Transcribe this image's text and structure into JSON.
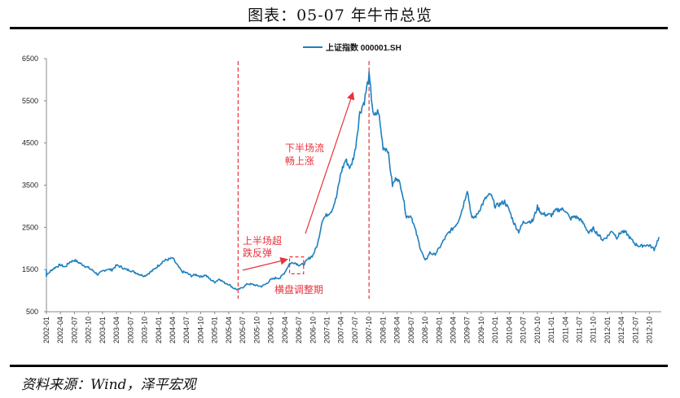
{
  "figure_title": "图表：05-07 年牛市总览",
  "source": "资料来源：Wind，泽平宏观",
  "chart_data": {
    "type": "line",
    "legend": "上证指数 000001.SH",
    "legend_position": "top-center",
    "line_color": "#1f7fbf",
    "annotation_color": "#e8323c",
    "ylim": [
      500,
      6500
    ],
    "yticks": [
      500,
      1500,
      2500,
      3500,
      4500,
      5500,
      6500
    ],
    "x_categories": [
      "2002-01",
      "2002-04",
      "2002-07",
      "2002-10",
      "2003-01",
      "2003-04",
      "2003-07",
      "2003-10",
      "2004-01",
      "2004-04",
      "2004-07",
      "2004-10",
      "2005-01",
      "2005-04",
      "2005-07",
      "2005-10",
      "2006-01",
      "2006-04",
      "2006-07",
      "2006-10",
      "2007-01",
      "2007-04",
      "2007-07",
      "2007-10",
      "2008-01",
      "2008-04",
      "2008-07",
      "2008-10",
      "2009-01",
      "2009-04",
      "2009-07",
      "2009-10",
      "2010-01",
      "2010-04",
      "2010-07",
      "2010-10",
      "2011-01",
      "2011-04",
      "2011-07",
      "2011-10",
      "2012-01",
      "2012-04",
      "2012-07",
      "2012-10"
    ],
    "series": [
      {
        "name": "上证指数 000001.SH",
        "points": [
          [
            "2002-01",
            1500
          ],
          [
            "2002-01",
            1360
          ],
          [
            "2002-02",
            1480
          ],
          [
            "2002-03",
            1560
          ],
          [
            "2002-04",
            1610
          ],
          [
            "2002-05",
            1560
          ],
          [
            "2002-06",
            1680
          ],
          [
            "2002-07",
            1720
          ],
          [
            "2002-08",
            1660
          ],
          [
            "2002-09",
            1600
          ],
          [
            "2002-10",
            1540
          ],
          [
            "2002-11",
            1470
          ],
          [
            "2002-12",
            1380
          ],
          [
            "2003-01",
            1460
          ],
          [
            "2003-02",
            1510
          ],
          [
            "2003-03",
            1490
          ],
          [
            "2003-04",
            1600
          ],
          [
            "2003-05",
            1560
          ],
          [
            "2003-06",
            1500
          ],
          [
            "2003-07",
            1480
          ],
          [
            "2003-08",
            1430
          ],
          [
            "2003-09",
            1380
          ],
          [
            "2003-10",
            1350
          ],
          [
            "2003-11",
            1420
          ],
          [
            "2003-12",
            1500
          ],
          [
            "2004-01",
            1600
          ],
          [
            "2004-02",
            1700
          ],
          [
            "2004-03",
            1740
          ],
          [
            "2004-04",
            1770
          ],
          [
            "2004-05",
            1600
          ],
          [
            "2004-06",
            1450
          ],
          [
            "2004-07",
            1420
          ],
          [
            "2004-08",
            1350
          ],
          [
            "2004-09",
            1380
          ],
          [
            "2004-10",
            1330
          ],
          [
            "2004-11",
            1370
          ],
          [
            "2004-12",
            1270
          ],
          [
            "2005-01",
            1200
          ],
          [
            "2005-02",
            1280
          ],
          [
            "2005-03",
            1190
          ],
          [
            "2005-04",
            1150
          ],
          [
            "2005-05",
            1060
          ],
          [
            "2005-06",
            1020
          ],
          [
            "2005-07",
            1080
          ],
          [
            "2005-08",
            1160
          ],
          [
            "2005-09",
            1150
          ],
          [
            "2005-10",
            1120
          ],
          [
            "2005-11",
            1100
          ],
          [
            "2005-12",
            1160
          ],
          [
            "2006-01",
            1260
          ],
          [
            "2006-02",
            1300
          ],
          [
            "2006-03",
            1300
          ],
          [
            "2006-04",
            1440
          ],
          [
            "2006-05",
            1640
          ],
          [
            "2006-06",
            1670
          ],
          [
            "2006-07",
            1610
          ],
          [
            "2006-08",
            1620
          ],
          [
            "2006-09",
            1750
          ],
          [
            "2006-10",
            1840
          ],
          [
            "2006-11",
            2100
          ],
          [
            "2006-12",
            2680
          ],
          [
            "2007-01",
            2800
          ],
          [
            "2007-02",
            2900
          ],
          [
            "2007-03",
            3200
          ],
          [
            "2007-04",
            3800
          ],
          [
            "2007-05",
            4100
          ],
          [
            "2007-06",
            3900
          ],
          [
            "2007-07",
            4300
          ],
          [
            "2007-08",
            5200
          ],
          [
            "2007-09",
            5500
          ],
          [
            "2007-10",
            6090
          ],
          [
            "2007-11",
            5100
          ],
          [
            "2007-12",
            5260
          ],
          [
            "2008-01",
            4400
          ],
          [
            "2008-02",
            4350
          ],
          [
            "2008-03",
            3500
          ],
          [
            "2008-04",
            3700
          ],
          [
            "2008-05",
            3400
          ],
          [
            "2008-06",
            2750
          ],
          [
            "2008-07",
            2780
          ],
          [
            "2008-08",
            2400
          ],
          [
            "2008-09",
            2000
          ],
          [
            "2008-10",
            1700
          ],
          [
            "2008-11",
            1900
          ],
          [
            "2008-12",
            1850
          ],
          [
            "2009-01",
            2000
          ],
          [
            "2009-02",
            2200
          ],
          [
            "2009-03",
            2370
          ],
          [
            "2009-04",
            2480
          ],
          [
            "2009-05",
            2630
          ],
          [
            "2009-06",
            2950
          ],
          [
            "2009-07",
            3400
          ],
          [
            "2009-08",
            2700
          ],
          [
            "2009-09",
            2780
          ],
          [
            "2009-10",
            3000
          ],
          [
            "2009-11",
            3200
          ],
          [
            "2009-12",
            3280
          ],
          [
            "2010-01",
            3000
          ],
          [
            "2010-02",
            3050
          ],
          [
            "2010-03",
            3110
          ],
          [
            "2010-04",
            2900
          ],
          [
            "2010-05",
            2600
          ],
          [
            "2010-06",
            2400
          ],
          [
            "2010-07",
            2620
          ],
          [
            "2010-08",
            2640
          ],
          [
            "2010-09",
            2650
          ],
          [
            "2010-10",
            2980
          ],
          [
            "2010-11",
            2820
          ],
          [
            "2010-12",
            2800
          ],
          [
            "2011-01",
            2790
          ],
          [
            "2011-02",
            2900
          ],
          [
            "2011-03",
            2930
          ],
          [
            "2011-04",
            2910
          ],
          [
            "2011-05",
            2700
          ],
          [
            "2011-06",
            2760
          ],
          [
            "2011-07",
            2700
          ],
          [
            "2011-08",
            2570
          ],
          [
            "2011-09",
            2360
          ],
          [
            "2011-10",
            2470
          ],
          [
            "2011-11",
            2330
          ],
          [
            "2011-12",
            2200
          ],
          [
            "2012-01",
            2290
          ],
          [
            "2012-02",
            2420
          ],
          [
            "2012-03",
            2260
          ],
          [
            "2012-04",
            2400
          ],
          [
            "2012-05",
            2370
          ],
          [
            "2012-06",
            2220
          ],
          [
            "2012-07",
            2100
          ],
          [
            "2012-08",
            2050
          ],
          [
            "2012-09",
            2080
          ],
          [
            "2012-10",
            2070
          ],
          [
            "2012-11",
            1980
          ],
          [
            "2012-12",
            2270
          ]
        ]
      }
    ],
    "vertical_markers": [
      "2005-06",
      "2007-10"
    ],
    "annotations": [
      {
        "text": "下半场流",
        "group": "second-half"
      },
      {
        "text": "畅上涨",
        "group": "second-half"
      },
      {
        "text": "上半场超",
        "group": "first-half"
      },
      {
        "text": "跌反弹",
        "group": "first-half"
      },
      {
        "text": "横盘调整期",
        "group": "consolidation"
      }
    ],
    "consolidation_box": {
      "x_start": "2006-05",
      "x_end": "2006-08",
      "y_low": 1400,
      "y_high": 1800
    }
  }
}
